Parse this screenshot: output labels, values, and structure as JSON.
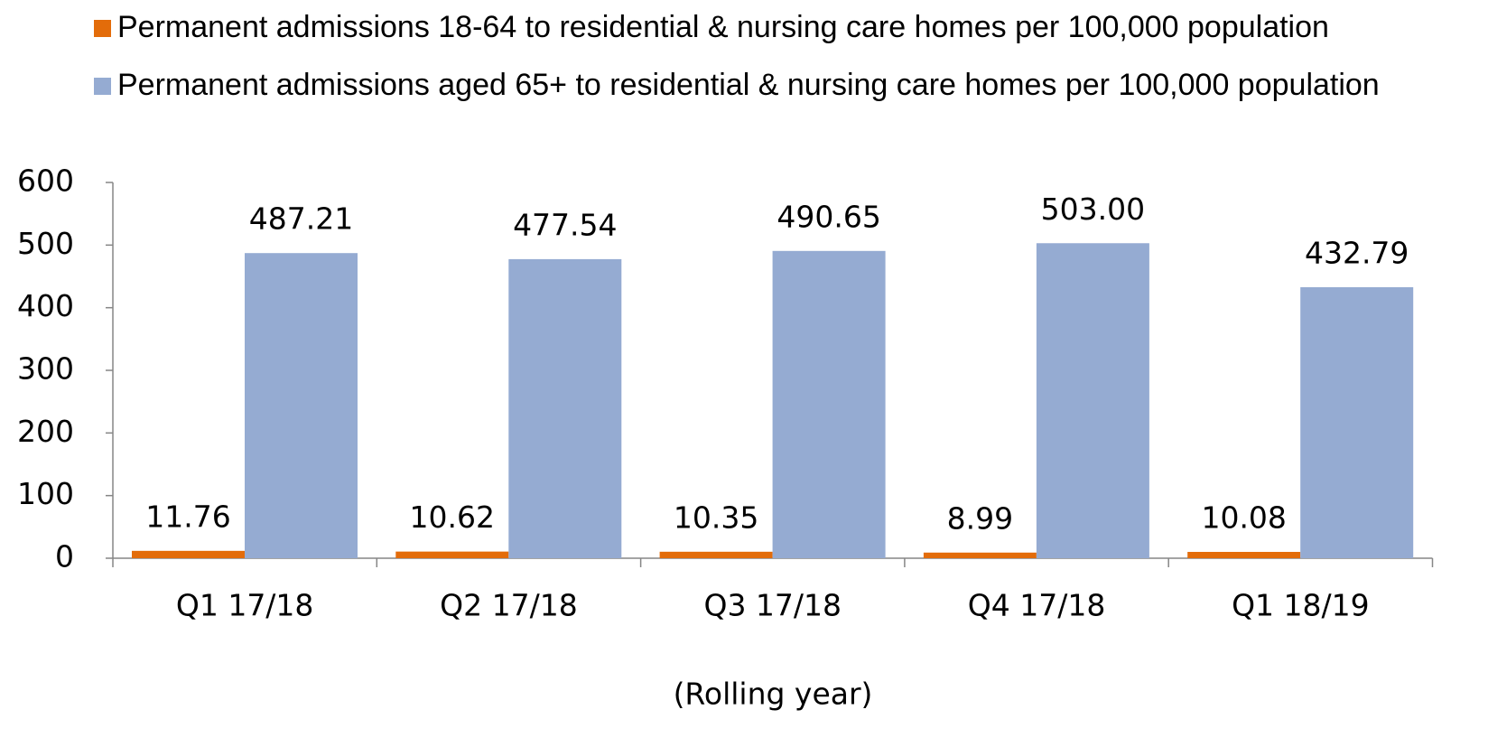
{
  "chart_data": {
    "type": "bar",
    "x_label": "(Rolling year)",
    "categories": [
      "Q1 17/18",
      "Q2 17/18",
      "Q3 17/18",
      "Q4 17/18",
      "Q1 18/19"
    ],
    "series": [
      {
        "name": "Permanent admissions 18-64 to residential & nursing care homes per 100,000 population",
        "color": "#e36c0a",
        "values": [
          11.76,
          10.62,
          10.35,
          8.99,
          10.08
        ]
      },
      {
        "name": "Permanent admissions aged 65+ to residential & nursing care homes per 100,000 population",
        "color": "#95abd2",
        "values": [
          487.21,
          477.54,
          490.65,
          503.0,
          432.79
        ],
        "value_labels": [
          "487.21",
          "477.54",
          "490.65",
          "503.00",
          "432.79"
        ]
      }
    ],
    "ylim": [
      0,
      600
    ],
    "yticks": [
      0,
      100,
      200,
      300,
      400,
      500,
      600
    ],
    "legend": "top",
    "grid": false
  }
}
